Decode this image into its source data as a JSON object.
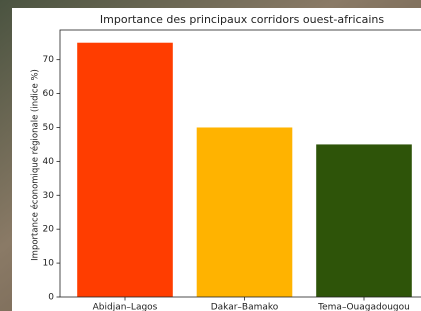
{
  "chart_data": {
    "type": "bar",
    "title": "Importance des principaux corridors ouest-africains",
    "y_label": "Importance économique régionale (indice %)",
    "categories": [
      "Abidjan–Lagos",
      "Dakar–Bamako",
      "Tema–Ouagadougou"
    ],
    "values": [
      75,
      50,
      45
    ],
    "colors": [
      "#ff3d00",
      "#ffb300",
      "#2e5409"
    ],
    "ylim": [
      0,
      78.75
    ],
    "yticks": [
      0,
      10,
      20,
      30,
      40,
      50,
      60,
      70
    ],
    "grid": false
  }
}
